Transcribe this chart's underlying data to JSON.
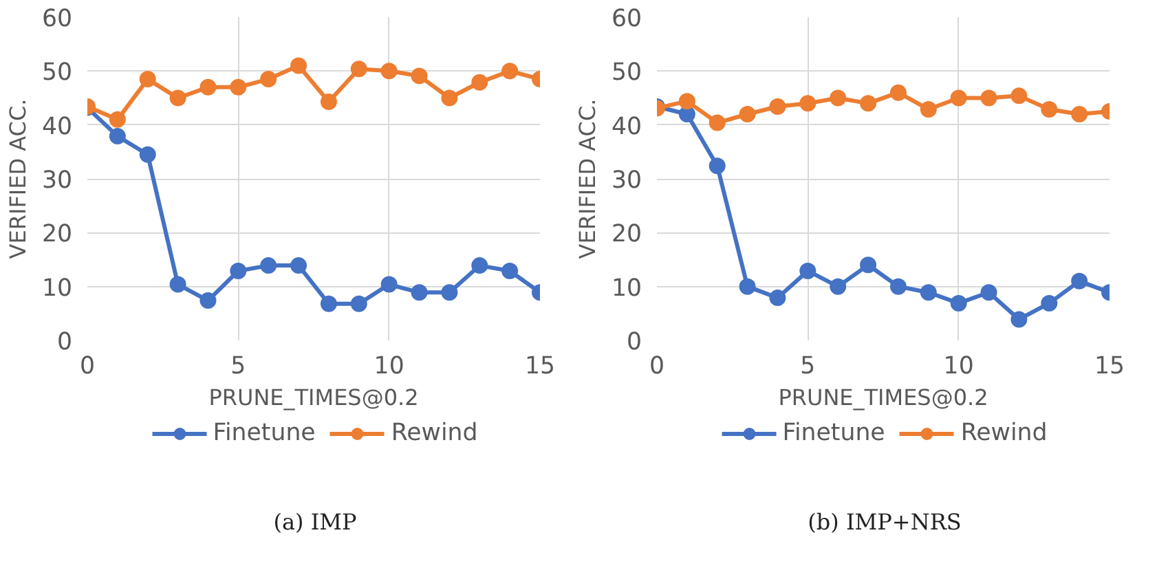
{
  "chart_data": [
    {
      "type": "line",
      "xlabel": "PRUNE_TIMES@0.2",
      "ylabel": "VERIFIED ACC.",
      "annotations": [
        "(a) IMP"
      ],
      "x": [
        0,
        1,
        2,
        3,
        4,
        5,
        6,
        7,
        8,
        9,
        10,
        11,
        12,
        13,
        14,
        15
      ],
      "series": [
        {
          "name": "Finetune",
          "color": "#4472c4",
          "values": [
            43.2,
            37.9,
            34.5,
            10.4,
            7.4,
            12.9,
            13.9,
            13.9,
            6.8,
            6.8,
            10.4,
            8.9,
            8.9,
            13.9,
            12.9,
            8.9
          ]
        },
        {
          "name": "Rewind",
          "color": "#ed7d31",
          "values": [
            43.4,
            41,
            48.5,
            45,
            47,
            47,
            48.5,
            51,
            44.3,
            50.4,
            50,
            49.1,
            45,
            47.9,
            50,
            48.5
          ]
        }
      ],
      "xlim": [
        0,
        15
      ],
      "xticks": [
        0,
        5,
        10,
        15
      ],
      "ylim": [
        0,
        60
      ],
      "yticks": [
        0,
        10,
        20,
        30,
        40,
        50,
        60
      ],
      "grid": true,
      "legend": "bottom",
      "marker": "circle",
      "line_style": "solid"
    },
    {
      "type": "line",
      "xlabel": "PRUNE_TIMES@0.2",
      "ylabel": "VERIFIED ACC.",
      "annotations": [
        "(b) IMP+NRS"
      ],
      "x": [
        0,
        1,
        2,
        3,
        4,
        5,
        6,
        7,
        8,
        9,
        10,
        11,
        12,
        13,
        14,
        15
      ],
      "series": [
        {
          "name": "Finetune",
          "color": "#4472c4",
          "values": [
            43.4,
            42,
            32.4,
            10,
            7.9,
            12.9,
            10,
            14,
            10,
            8.9,
            6.9,
            8.9,
            3.9,
            6.9,
            11,
            8.9
          ]
        },
        {
          "name": "Rewind",
          "color": "#ed7d31",
          "values": [
            43.1,
            44.4,
            40.4,
            42,
            43.4,
            44,
            45,
            44,
            46,
            42.9,
            45,
            45,
            45.4,
            42.9,
            42,
            42.5
          ]
        }
      ],
      "xlim": [
        0,
        15
      ],
      "xticks": [
        0,
        5,
        10,
        15
      ],
      "ylim": [
        0,
        60
      ],
      "yticks": [
        0,
        10,
        20,
        30,
        40,
        50,
        60
      ],
      "grid": true,
      "legend": "bottom",
      "marker": "circle",
      "line_style": "solid"
    }
  ]
}
